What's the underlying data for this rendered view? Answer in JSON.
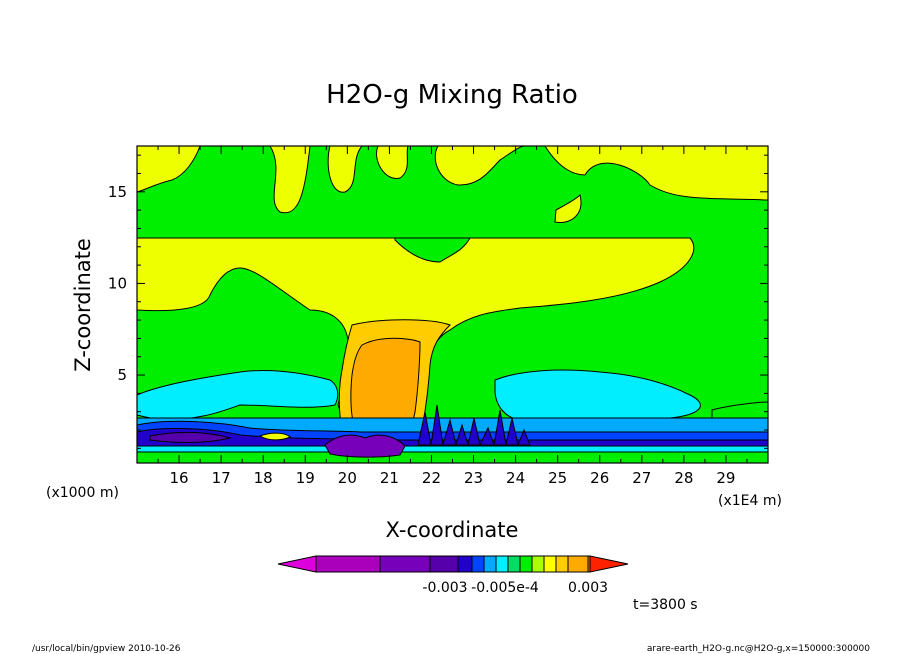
{
  "chart_data": {
    "type": "heatmap",
    "title": "H2O-g Mixing Ratio",
    "xlabel": "X-coordinate",
    "ylabel": "Z-coordinate",
    "x_scale_label": "(x1E4 m)",
    "y_scale_label": "(x1000 m)",
    "x_ticks": [
      "16",
      "17",
      "18",
      "19",
      "20",
      "21",
      "22",
      "23",
      "24",
      "25",
      "26",
      "27",
      "28",
      "29"
    ],
    "y_ticks": [
      "5",
      "10",
      "15"
    ],
    "xlim": [
      15.0,
      30.0
    ],
    "ylim": [
      0.2,
      17.5
    ],
    "colorbar": {
      "labels": [
        "-0.003",
        "-0.005e-4",
        "0.003"
      ],
      "colors": [
        "#dd00dd",
        "#aa00bb",
        "#7700bb",
        "#5500aa",
        "#2200cc",
        "#0044ff",
        "#00aaff",
        "#00eeff",
        "#00dd66",
        "#00ee00",
        "#aaff00",
        "#ffff00",
        "#ffcc00",
        "#ffaa00",
        "#ff7700",
        "#ff2200"
      ]
    },
    "time_label": "t=3800 s",
    "grid": false
  },
  "footer": {
    "left": "/usr/local/bin/gpview  2010-10-26",
    "right": "arare-earth_H2O-g.nc@H2O-g,x=150000:300000"
  },
  "colors": {
    "green": "#00ee00",
    "yellow": "#eeff00",
    "gold": "#ffcc00",
    "orange": "#ffaa00",
    "cyan": "#00eeff",
    "skyblue": "#00aaff",
    "blue": "#0044ff",
    "navy": "#2200cc",
    "indigo": "#5500aa",
    "purple": "#7700bb"
  }
}
